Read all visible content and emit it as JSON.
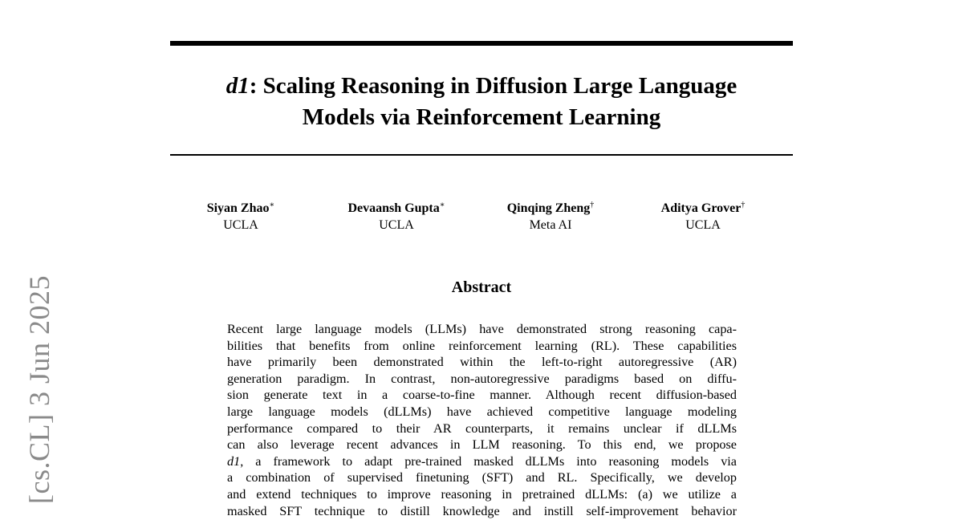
{
  "side_stamp": "[cs.CL]  3 Jun 2025",
  "title": {
    "italic_prefix": "d1",
    "line1_rest": ": Scaling Reasoning in Diffusion Large Language",
    "line2": "Models via Reinforcement Learning"
  },
  "authors": [
    {
      "name": "Siyan Zhao",
      "mark": "∗",
      "affiliation": "UCLA"
    },
    {
      "name": "Devaansh Gupta",
      "mark": "∗",
      "affiliation": "UCLA"
    },
    {
      "name": "Qinqing Zheng",
      "mark": "†",
      "affiliation": "Meta AI"
    },
    {
      "name": "Aditya Grover",
      "mark": "†",
      "affiliation": "UCLA"
    }
  ],
  "abstract": {
    "heading": "Abstract",
    "lines": [
      "Recent large language models (LLMs) have demonstrated strong reasoning capa-",
      "bilities that benefits from online reinforcement learning (RL). These capabilities",
      "have primarily been demonstrated within the left-to-right autoregressive (AR)",
      "generation paradigm. In contrast, non-autoregressive paradigms based on diffu-",
      "sion generate text in a coarse-to-fine manner.  Although recent diffusion-based",
      "large language models (dLLMs) have achieved competitive language modeling",
      "performance compared to their AR counterparts, it remains unclear if dLLMs",
      "can also leverage recent advances in LLM reasoning.  To this end, we propose",
      "",
      "a combination of supervised finetuning (SFT) and RL. Specifically, we develop",
      "and extend techniques to improve reasoning in pretrained dLLMs: (a) we utilize a",
      "masked SFT technique to distill knowledge and instill self-improvement behavior"
    ],
    "line9_italic": "d1",
    "line9_rest": ", a framework to adapt pre-trained masked dLLMs into reasoning models via"
  }
}
